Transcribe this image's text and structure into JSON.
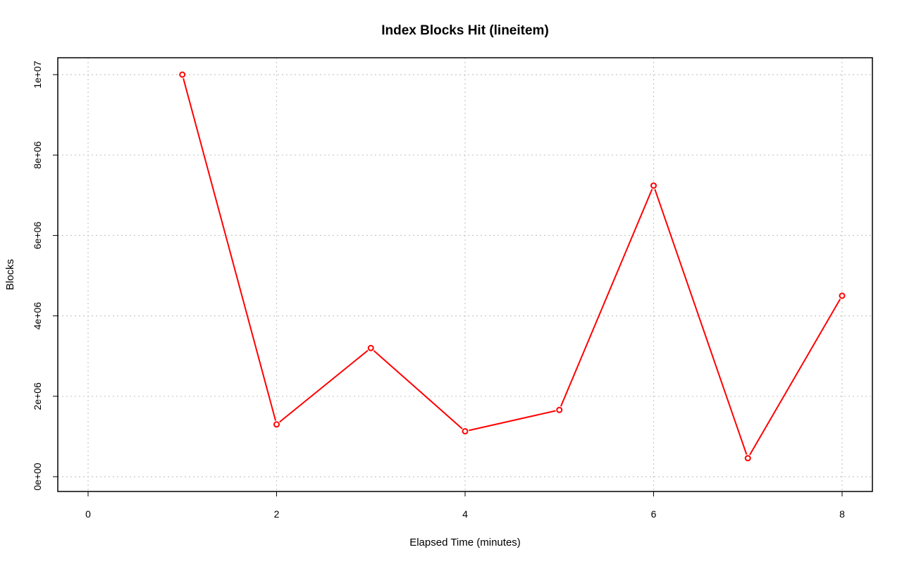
{
  "chart_data": {
    "type": "line",
    "title": "Index Blocks Hit (lineitem)",
    "xlabel": "Elapsed Time (minutes)",
    "ylabel": "Blocks",
    "xlim": [
      0,
      8
    ],
    "ylim": [
      0,
      10000000
    ],
    "x_ticks": [
      0,
      2,
      4,
      6,
      8
    ],
    "x_tick_labels": [
      "0",
      "2",
      "4",
      "6",
      "8"
    ],
    "y_ticks": [
      0,
      2000000,
      4000000,
      6000000,
      8000000,
      10000000
    ],
    "y_tick_labels": [
      "0e+00",
      "2e+06",
      "4e+06",
      "6e+06",
      "8e+06",
      "1e+07"
    ],
    "grid": true,
    "series": [
      {
        "color": "#ff0000",
        "x": [
          1,
          2,
          3,
          4,
          5,
          6,
          7,
          8
        ],
        "y": [
          10000000,
          1300000,
          3200000,
          1130000,
          1660000,
          7240000,
          460000,
          4500000
        ]
      }
    ]
  }
}
